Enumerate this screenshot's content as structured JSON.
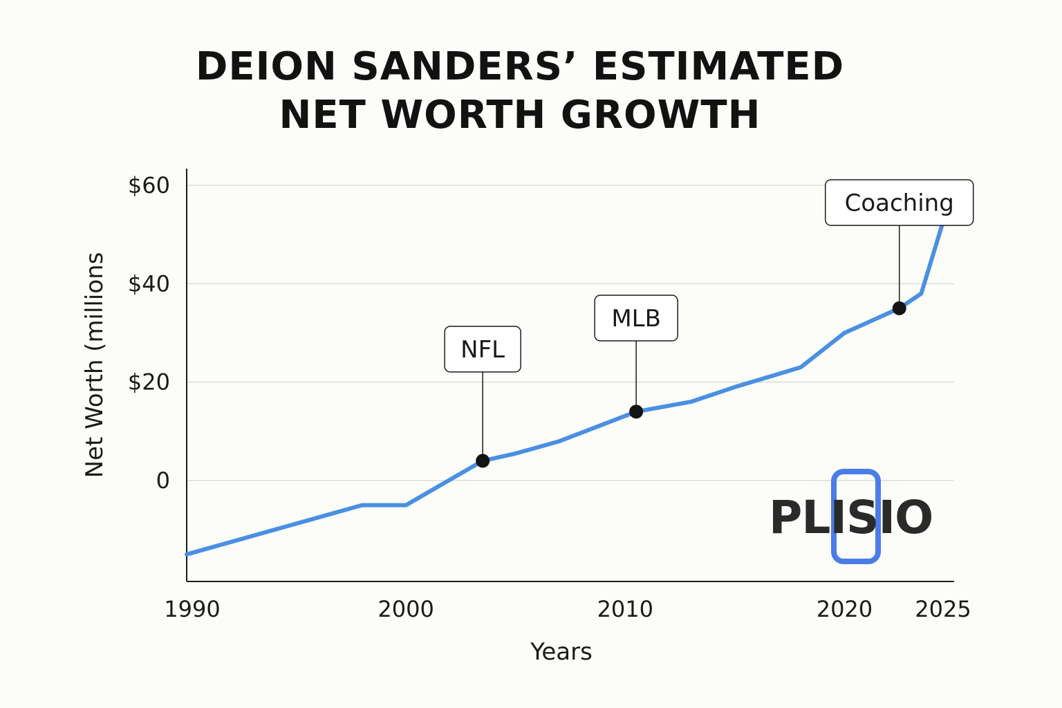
{
  "title": {
    "line1": "DEION SANDERS’ ESTIMATED",
    "line2": "NET WORTH GROWTH"
  },
  "logo": {
    "text": "PLISIO",
    "ring_color": "#4a7de8"
  },
  "chart_data": {
    "type": "line",
    "title": "DEION SANDERS’ ESTIMATED NET WORTH GROWTH",
    "xlabel": "Years",
    "ylabel": "Net Worth (millions",
    "xlim": [
      1990,
      2025
    ],
    "ylim": [
      -20,
      60
    ],
    "x_ticks": [
      {
        "value": 1990,
        "label": "1990"
      },
      {
        "value": 2000,
        "label": "2000"
      },
      {
        "value": 2010,
        "label": "2010"
      },
      {
        "value": 2020,
        "label": "2020"
      },
      {
        "value": 2025,
        "label": "2025"
      }
    ],
    "y_ticks": [
      {
        "value": 0,
        "label": "0"
      },
      {
        "value": 20,
        "label": "$20"
      },
      {
        "value": 40,
        "label": "$40"
      },
      {
        "value": 60,
        "label": "$60"
      }
    ],
    "grid": true,
    "line_color": "#4a90e2",
    "series": [
      {
        "x": [
          1990,
          1994,
          1998,
          2000,
          2003.5,
          2005,
          2007,
          2010.5,
          2013,
          2015,
          2018,
          2020,
          2022.5,
          2023.5,
          2025
        ],
        "y": [
          -15,
          -10,
          -5,
          -5,
          4,
          5.5,
          8,
          14,
          16,
          19,
          23,
          30,
          35,
          38,
          60
        ]
      }
    ],
    "annotations": [
      {
        "label": "NFL",
        "x": 2003.5,
        "y": 4
      },
      {
        "label": "MLB",
        "x": 2010.5,
        "y": 14
      },
      {
        "label": "Coaching",
        "x": 2022.5,
        "y": 35
      }
    ]
  }
}
